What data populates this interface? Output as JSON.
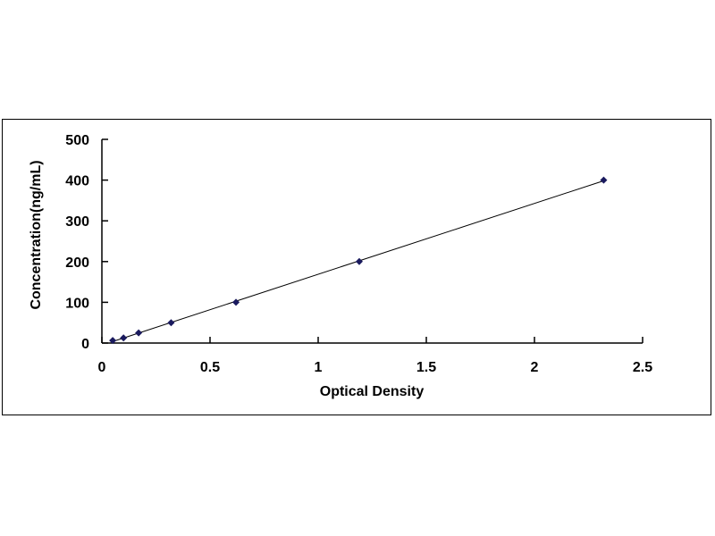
{
  "chart_data": {
    "type": "scatter",
    "title": "",
    "xlabel": "Optical Density",
    "ylabel": "Concentration(ng/mL)",
    "xlim": [
      0,
      2.5
    ],
    "ylim": [
      0,
      500
    ],
    "xticks": [
      "0",
      "0.5",
      "1",
      "1.5",
      "2",
      "2.5"
    ],
    "yticks": [
      "0",
      "100",
      "200",
      "300",
      "400",
      "500"
    ],
    "grid": false,
    "legend": "none",
    "trendline": "linear",
    "marker": "diamond",
    "color": "#1a1a5e",
    "points": [
      {
        "x": 0.05,
        "y": 6.25
      },
      {
        "x": 0.1,
        "y": 12.5
      },
      {
        "x": 0.17,
        "y": 25
      },
      {
        "x": 0.32,
        "y": 50
      },
      {
        "x": 0.62,
        "y": 100
      },
      {
        "x": 1.19,
        "y": 200
      },
      {
        "x": 2.32,
        "y": 400
      }
    ]
  }
}
